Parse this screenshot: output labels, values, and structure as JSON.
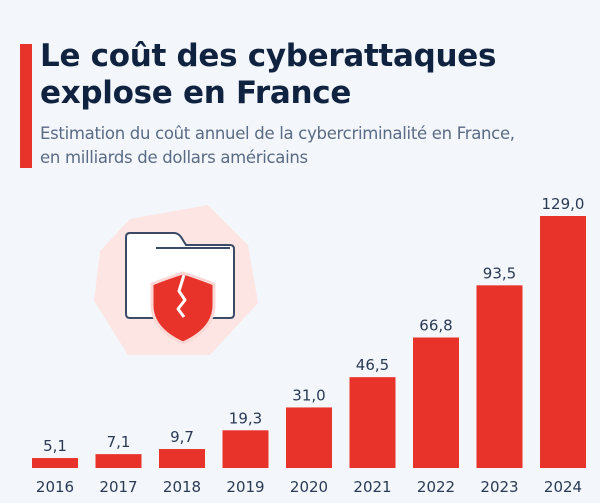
{
  "title": "Le coût des cyberattaques explose en France",
  "title_lines": [
    "Le coût des cyberattaques",
    "explose en France"
  ],
  "subtitle_lines": [
    "Estimation du coût annuel de la cybercriminalité en France,",
    "en milliards de dollars américains"
  ],
  "colors": {
    "accent": "#e8332a",
    "bar": "#e8332a",
    "title": "#0f2240",
    "subtitle": "#5a6b85",
    "background": "#f3f6fa",
    "icon_blob": "#fde5e4",
    "folder_stroke": "#3b4b66"
  },
  "illustration": {
    "icon": "folder-with-broken-shield-icon"
  },
  "chart_data": {
    "type": "bar",
    "title": "Le coût des cyberattaques explose en France",
    "subtitle": "Estimation du coût annuel de la cybercriminalité en France, en milliards de dollars américains",
    "xlabel": "",
    "ylabel": "milliards de dollars américains",
    "categories": [
      "2016",
      "2017",
      "2018",
      "2019",
      "2020",
      "2021",
      "2022",
      "2023",
      "2024"
    ],
    "values": [
      5.1,
      7.1,
      9.7,
      19.3,
      31.0,
      46.5,
      66.8,
      93.5,
      129.0
    ],
    "value_labels": [
      "5,1",
      "7,1",
      "9,7",
      "19,3",
      "31,0",
      "46,5",
      "66,8",
      "93,5",
      "129,0"
    ],
    "ylim": [
      0,
      129
    ],
    "grid": false,
    "legend": "none"
  }
}
